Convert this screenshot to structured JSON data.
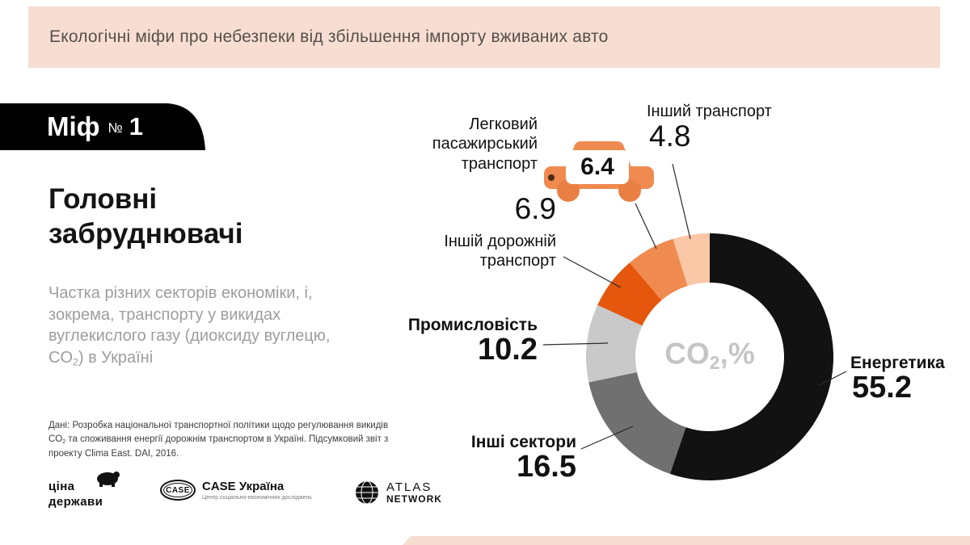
{
  "banner": {
    "title": "Екологічні міфи про небезпеки від збільшення імпорту вживаних авто"
  },
  "myth_badge": {
    "word": "Міф",
    "numero": "№",
    "number": "1"
  },
  "left": {
    "heading_line1": "Головні",
    "heading_line2": "забруднювачі",
    "description": {
      "part1": "Частка різних секторів економіки, і, зокрема, транспорту у викидах вуглекислого газу (диоксиду вуглецю, CO",
      "sub": "2",
      "part2": ") в Україні"
    },
    "source_note": {
      "part1": "Дані: Розробка національної транспортної політики щодо регулювання викидів CO",
      "sub": "2",
      "part2": " та споживання енергії дорожнім транспортом в Україні. Підсумковий звіт з проекту Clima East. DAI, 2016."
    }
  },
  "logos": {
    "tsina": {
      "line1": "ціна",
      "line2": "держави"
    },
    "case": {
      "oval": "CASE",
      "title": "CASE Україна",
      "subtitle": "Центр соціально-економічних досліджень"
    },
    "atlas": {
      "line1": "ATLAS",
      "line2": "NETWORK"
    }
  },
  "chart_data": {
    "type": "pie",
    "variant": "donut",
    "title": "Головні забруднювачі — частка секторів у викидах CO2 в Україні",
    "unit": "%",
    "total": 100,
    "start_angle_deg": 0,
    "direction": "clockwise",
    "legend_position": "callout-labels-around-donut",
    "center_label": {
      "prefix": "CO",
      "sub": "2",
      "suffix": ",%"
    },
    "segments": [
      {
        "label": "Енергетика",
        "value": 55.2,
        "color": "#121212"
      },
      {
        "label": "Інші сектори",
        "value": 16.5,
        "color": "#707070"
      },
      {
        "label": "Промисловість",
        "value": 10.2,
        "color": "#c9c9c9"
      },
      {
        "label": "Іншій дорожній транспорт",
        "value": 6.9,
        "color": "#e5570d"
      },
      {
        "label": "Легковий пасажирський транспорт",
        "value": 6.4,
        "color": "#ef8a50"
      },
      {
        "label": "Інший транспорт",
        "value": 4.8,
        "color": "#f9c6a6"
      }
    ],
    "accent_colors": {
      "banner_bg": "#f7ddd2",
      "car_orange": "#ef8a50",
      "center_text": "#c5c5c5"
    }
  }
}
